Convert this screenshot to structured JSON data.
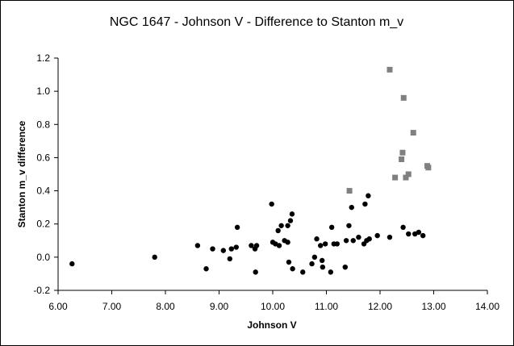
{
  "chart_data": {
    "type": "scatter",
    "title": "NGC 1647 - Johnson V - Difference to Stanton m_v",
    "xlabel": "Johnson V",
    "ylabel": "Stanton m_v difference",
    "xlim": [
      6.0,
      14.0
    ],
    "ylim": [
      -0.2,
      1.2
    ],
    "x_ticks": [
      "6.00",
      "7.00",
      "8.00",
      "9.00",
      "10.00",
      "11.00",
      "12.00",
      "13.00",
      "14.00"
    ],
    "y_ticks": [
      "-0.2",
      "0.0",
      "0.2",
      "0.4",
      "0.6",
      "0.8",
      "1.0",
      "1.2"
    ],
    "grid": false,
    "legend": "none",
    "series": [
      {
        "marker": "circle",
        "color": "#000000",
        "points": [
          [
            6.26,
            -0.04
          ],
          [
            7.8,
            0.0
          ],
          [
            8.6,
            0.07
          ],
          [
            8.76,
            -0.07
          ],
          [
            8.88,
            0.05
          ],
          [
            9.08,
            0.04
          ],
          [
            9.2,
            -0.01
          ],
          [
            9.23,
            0.05
          ],
          [
            9.32,
            0.06
          ],
          [
            9.34,
            0.18
          ],
          [
            9.6,
            0.07
          ],
          [
            9.67,
            0.05
          ],
          [
            9.68,
            -0.09
          ],
          [
            9.7,
            0.07
          ],
          [
            9.98,
            0.32
          ],
          [
            10.0,
            0.09
          ],
          [
            10.05,
            0.08
          ],
          [
            10.1,
            0.16
          ],
          [
            10.12,
            0.07
          ],
          [
            10.16,
            0.19
          ],
          [
            10.22,
            0.1
          ],
          [
            10.28,
            0.09
          ],
          [
            10.28,
            0.19
          ],
          [
            10.3,
            -0.03
          ],
          [
            10.33,
            0.22
          ],
          [
            10.36,
            0.26
          ],
          [
            10.37,
            -0.07
          ],
          [
            10.56,
            -0.09
          ],
          [
            10.73,
            -0.04
          ],
          [
            10.78,
            0.0
          ],
          [
            10.82,
            0.11
          ],
          [
            10.89,
            0.07
          ],
          [
            10.92,
            -0.02
          ],
          [
            10.93,
            -0.06
          ],
          [
            10.98,
            0.08
          ],
          [
            11.08,
            -0.09
          ],
          [
            11.1,
            0.18
          ],
          [
            11.14,
            0.08
          ],
          [
            11.2,
            0.08
          ],
          [
            11.35,
            -0.06
          ],
          [
            11.37,
            0.1
          ],
          [
            11.42,
            0.19
          ],
          [
            11.47,
            0.3
          ],
          [
            11.5,
            0.1
          ],
          [
            11.6,
            0.12
          ],
          [
            11.7,
            0.08
          ],
          [
            11.72,
            0.32
          ],
          [
            11.75,
            0.1
          ],
          [
            11.78,
            0.37
          ],
          [
            11.8,
            0.11
          ],
          [
            11.95,
            0.13
          ],
          [
            12.18,
            0.12
          ],
          [
            12.43,
            0.18
          ],
          [
            12.53,
            0.14
          ],
          [
            12.65,
            0.14
          ],
          [
            12.72,
            0.15
          ],
          [
            12.8,
            0.13
          ]
        ]
      },
      {
        "marker": "square",
        "color": "#808080",
        "points": [
          [
            11.43,
            0.4
          ],
          [
            12.18,
            1.13
          ],
          [
            12.28,
            0.48
          ],
          [
            12.4,
            0.59
          ],
          [
            12.42,
            0.63
          ],
          [
            12.44,
            0.96
          ],
          [
            12.48,
            0.48
          ],
          [
            12.53,
            0.5
          ],
          [
            12.62,
            0.75
          ],
          [
            12.88,
            0.55
          ],
          [
            12.9,
            0.54
          ]
        ]
      }
    ]
  }
}
